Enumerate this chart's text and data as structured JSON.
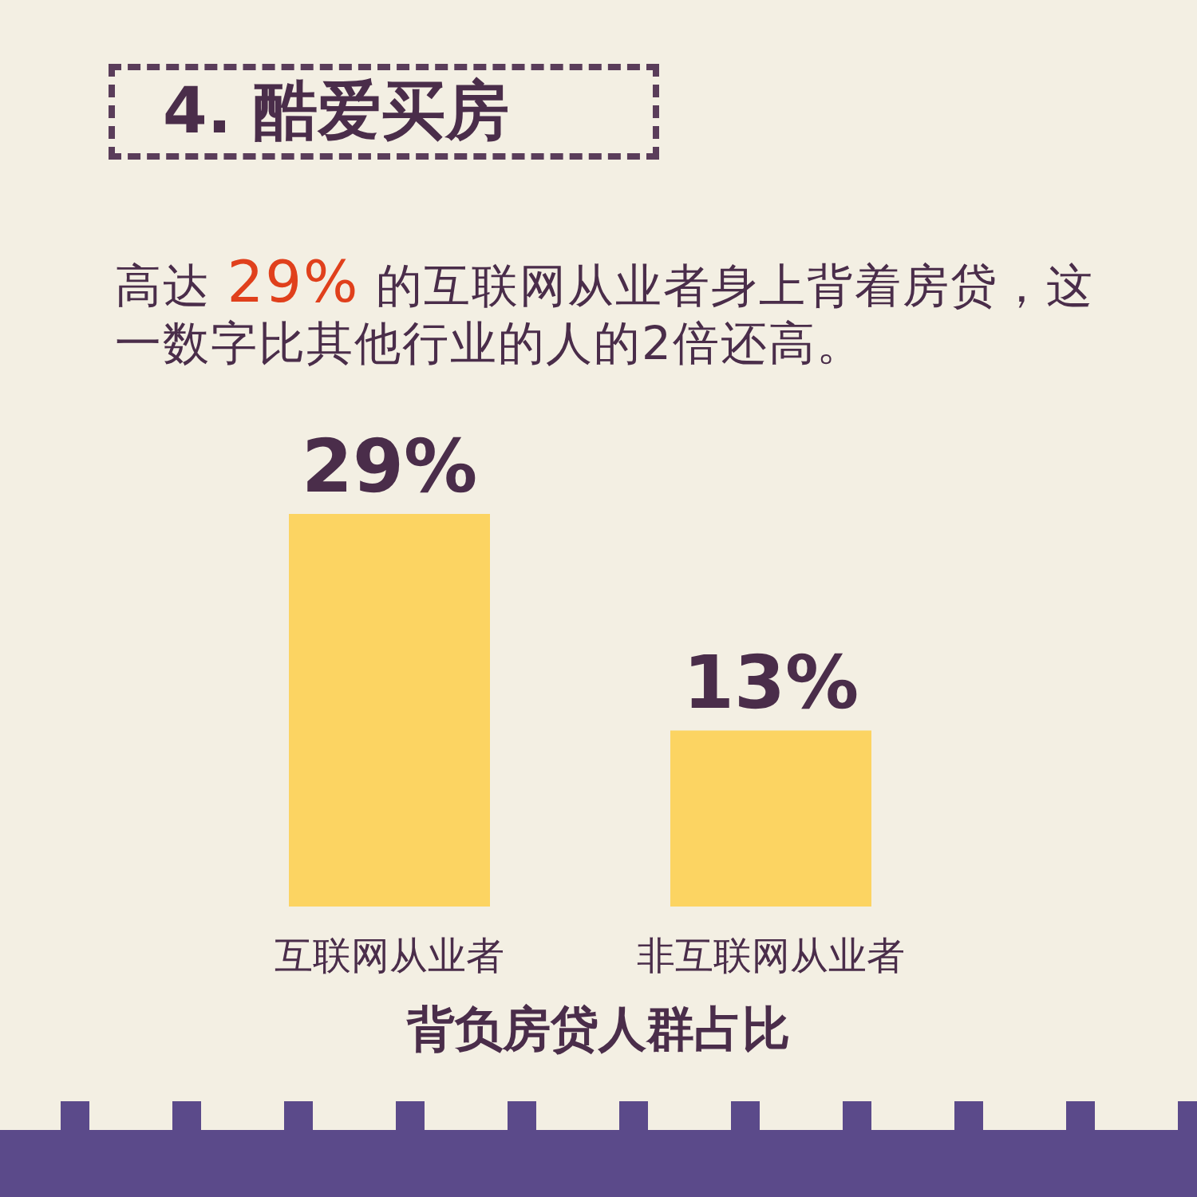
{
  "chart_data": {
    "type": "bar",
    "title": "4. 酷爱买房",
    "subtitle": "高达 **29%** 的互联网从业者身上背着房贷，这一数字比其他行业的人的2倍还高。",
    "categories": [
      "互联网从业者",
      "非互联网从业者"
    ],
    "values": [
      29,
      13
    ],
    "value_labels": [
      "29%",
      "13%"
    ],
    "color": "#fcd462",
    "xlabel": "背负房贷人群占比"
  }
}
